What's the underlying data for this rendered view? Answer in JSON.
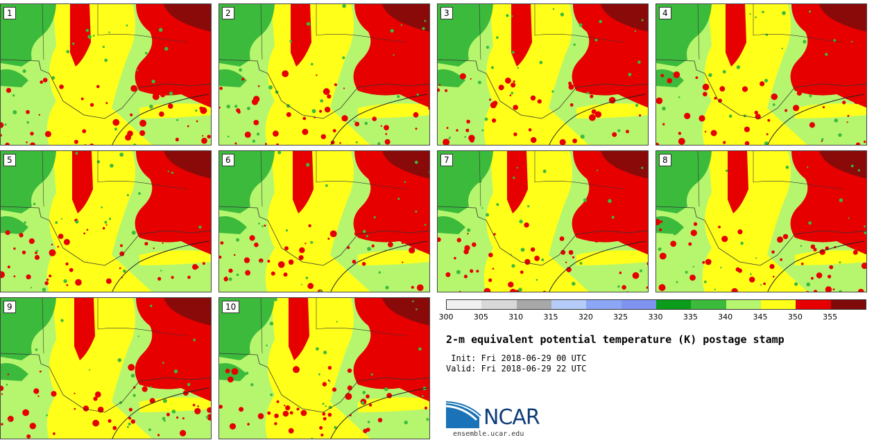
{
  "map": {
    "region": "South-central United States",
    "panels": [
      "1",
      "2",
      "3",
      "4",
      "5",
      "6",
      "7",
      "8",
      "9",
      "10"
    ]
  },
  "colorbar": {
    "colors": [
      "#f0f0f0",
      "#d8d8d8",
      "#a8a8a8",
      "#b6ccf8",
      "#8ca6f6",
      "#7e94f0",
      "#0a9c1a",
      "#3cba3c",
      "#b6f66e",
      "#ffff1a",
      "#e60000",
      "#7e0a0a"
    ],
    "ticks": [
      "300",
      "305",
      "310",
      "315",
      "320",
      "325",
      "330",
      "335",
      "340",
      "345",
      "350",
      "355"
    ]
  },
  "title": "2-m equivalent potential temperature (K) postage stamp",
  "init_line": " Init: Fri 2018-06-29 00 UTC",
  "valid_line": "Valid: Fri 2018-06-29 22 UTC",
  "logo": {
    "text": "NCAR",
    "site": "ensemble.ucar.edu"
  }
}
